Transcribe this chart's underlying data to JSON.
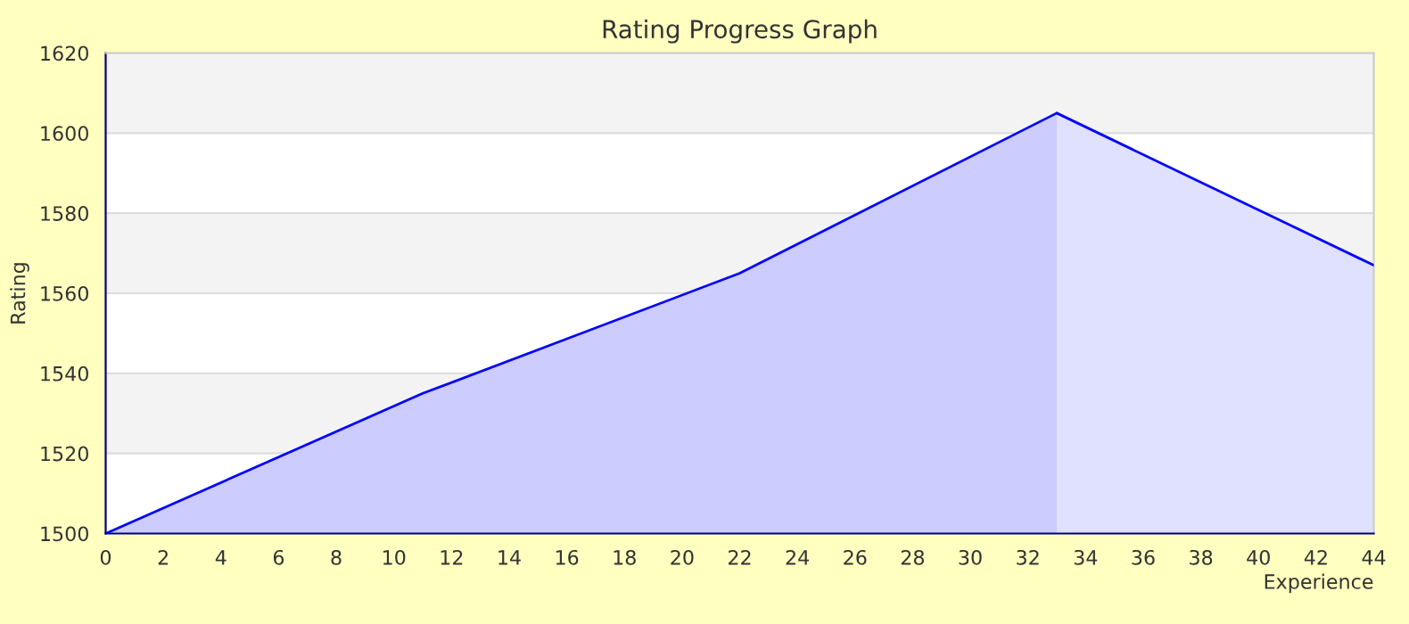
{
  "chart_data": {
    "type": "area",
    "title": "Rating Progress Graph",
    "xlabel": "Experience",
    "ylabel": "Rating",
    "series": [
      {
        "x": [
          0,
          11,
          22,
          33
        ],
        "values": [
          1500,
          1535,
          1565,
          1605
        ],
        "color": "#ccccff"
      },
      {
        "x": [
          33,
          44
        ],
        "values": [
          1605,
          1567
        ],
        "color": "#e0e0ff"
      }
    ],
    "xlim": [
      0,
      44
    ],
    "xticks": [
      0,
      2,
      4,
      6,
      8,
      10,
      12,
      14,
      16,
      18,
      20,
      22,
      24,
      26,
      28,
      30,
      32,
      34,
      36,
      38,
      40,
      42,
      44
    ],
    "ylim": [
      1500,
      1620
    ],
    "yticks": [
      1500,
      1520,
      1540,
      1560,
      1580,
      1600,
      1620
    ],
    "bands": [
      {
        "axis": "y",
        "from": 1520,
        "to": 1540,
        "color": "#f3f3f3"
      },
      {
        "axis": "y",
        "from": 1560,
        "to": 1580,
        "color": "#f3f3f3"
      },
      {
        "axis": "y",
        "from": 1600,
        "to": 1620,
        "color": "#f3f3f3"
      }
    ],
    "grid": "y"
  }
}
